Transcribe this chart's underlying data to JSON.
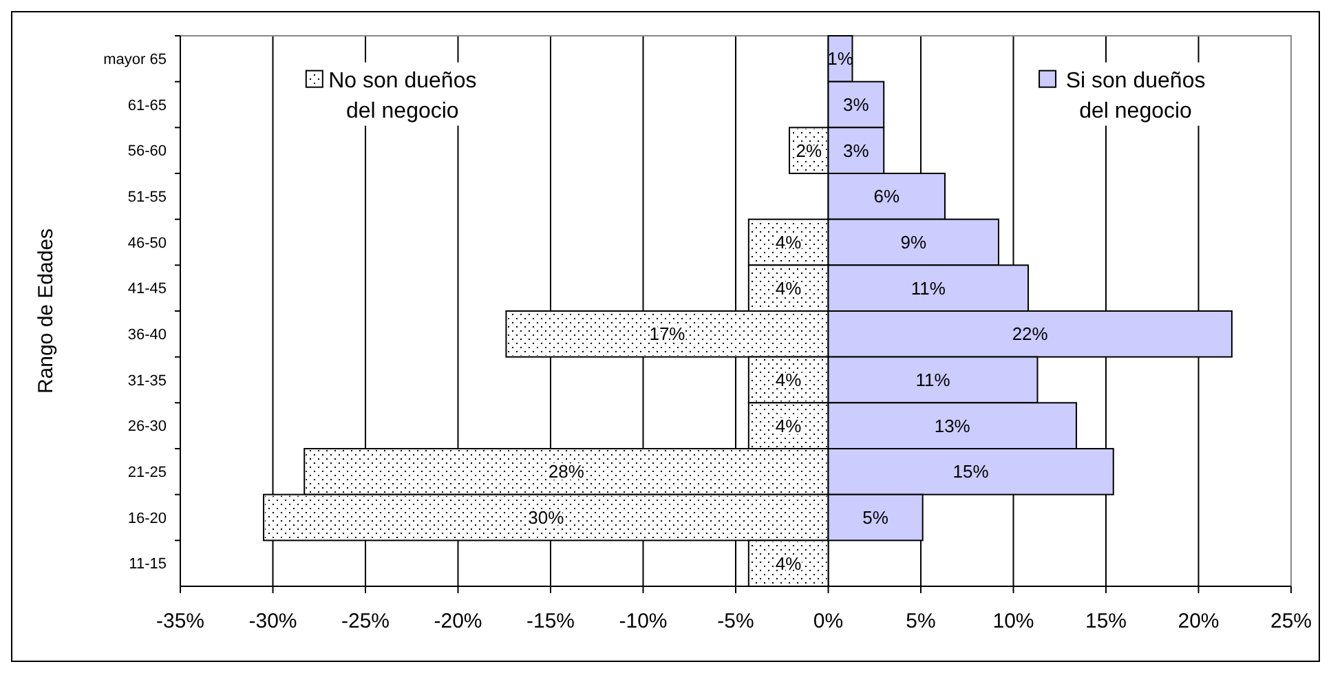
{
  "chart_data": {
    "type": "bar",
    "orientation": "horizontal",
    "ylabel": "Rango de Edades",
    "categories": [
      "mayor 65",
      "61-65",
      "56-60",
      "51-55",
      "46-50",
      "41-45",
      "36-40",
      "31-35",
      "26-30",
      "21-25",
      "16-20",
      "11-15"
    ],
    "series": [
      {
        "name": "No son dueños del negocio",
        "color": "#ffffff",
        "values": [
          null,
          null,
          2.1,
          null,
          4.3,
          4.3,
          17.4,
          4.3,
          4.3,
          28.3,
          30.5,
          4.3
        ],
        "base": [
          null,
          null,
          -2.1,
          null,
          -4.3,
          -4.3,
          -17.4,
          -4.3,
          -4.3,
          -28.3,
          -30.5,
          -4.3
        ],
        "value_labels": [
          null,
          null,
          "2%",
          null,
          "4%",
          "4%",
          "17%",
          "4%",
          "4%",
          "28%",
          "30%",
          "4%"
        ]
      },
      {
        "name": "Si son dueños del negocio",
        "color": "#ccccff",
        "values": [
          1.3,
          3.0,
          3.0,
          6.3,
          9.2,
          10.8,
          21.8,
          11.3,
          13.4,
          15.4,
          5.1,
          0
        ],
        "value_labels": [
          "1%",
          "3%",
          "3%",
          "6%",
          "9%",
          "11%",
          "22%",
          "11%",
          "13%",
          "15%",
          "5%",
          null
        ]
      }
    ],
    "xlim": [
      -35,
      25
    ],
    "xticks": [
      {
        "value": -35,
        "label": "-35%"
      },
      {
        "value": -30,
        "label": "-30%"
      },
      {
        "value": -25,
        "label": "-25%"
      },
      {
        "value": -20,
        "label": "-20%"
      },
      {
        "value": -15,
        "label": "-15%"
      },
      {
        "value": -10,
        "label": "-10%"
      },
      {
        "value": -5,
        "label": "-5%"
      },
      {
        "value": 0,
        "label": "0%"
      },
      {
        "value": 5,
        "label": "5%"
      },
      {
        "value": 10,
        "label": "10%"
      },
      {
        "value": 15,
        "label": "15%"
      },
      {
        "value": 20,
        "label": "20%"
      },
      {
        "value": 25,
        "label": "25%"
      }
    ],
    "grid": "x",
    "legend": "top"
  }
}
